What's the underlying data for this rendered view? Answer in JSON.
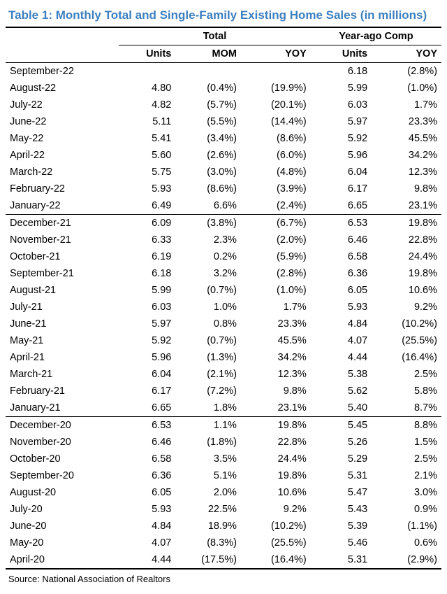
{
  "title": "Table 1: Monthly Total and Single-Family Existing Home Sales (in millions)",
  "title_color": "#3d7fbf",
  "group_headers": {
    "g1": "Total",
    "g2": "Year-ago Comp"
  },
  "col_headers": {
    "c1": "Units",
    "c2": "MOM",
    "c3": "YOY",
    "c4": "Units",
    "c5": "YOY"
  },
  "sections": [
    {
      "rows": [
        {
          "label": "September-22",
          "u1": "",
          "mom": "",
          "yoy1": "",
          "u2": "6.18",
          "yoy2": "(2.8%)"
        },
        {
          "label": "August-22",
          "u1": "4.80",
          "mom": "(0.4%)",
          "yoy1": "(19.9%)",
          "u2": "5.99",
          "yoy2": "(1.0%)"
        },
        {
          "label": "July-22",
          "u1": "4.82",
          "mom": "(5.7%)",
          "yoy1": "(20.1%)",
          "u2": "6.03",
          "yoy2": "1.7%"
        },
        {
          "label": "June-22",
          "u1": "5.11",
          "mom": "(5.5%)",
          "yoy1": "(14.4%)",
          "u2": "5.97",
          "yoy2": "23.3%"
        },
        {
          "label": "May-22",
          "u1": "5.41",
          "mom": "(3.4%)",
          "yoy1": "(8.6%)",
          "u2": "5.92",
          "yoy2": "45.5%"
        },
        {
          "label": "April-22",
          "u1": "5.60",
          "mom": "(2.6%)",
          "yoy1": "(6.0%)",
          "u2": "5.96",
          "yoy2": "34.2%"
        },
        {
          "label": "March-22",
          "u1": "5.75",
          "mom": "(3.0%)",
          "yoy1": "(4.8%)",
          "u2": "6.04",
          "yoy2": "12.3%"
        },
        {
          "label": "February-22",
          "u1": "5.93",
          "mom": "(8.6%)",
          "yoy1": "(3.9%)",
          "u2": "6.17",
          "yoy2": "9.8%"
        },
        {
          "label": "January-22",
          "u1": "6.49",
          "mom": "6.6%",
          "yoy1": "(2.4%)",
          "u2": "6.65",
          "yoy2": "23.1%"
        }
      ]
    },
    {
      "rows": [
        {
          "label": "December-21",
          "u1": "6.09",
          "mom": "(3.8%)",
          "yoy1": "(6.7%)",
          "u2": "6.53",
          "yoy2": "19.8%"
        },
        {
          "label": "November-21",
          "u1": "6.33",
          "mom": "2.3%",
          "yoy1": "(2.0%)",
          "u2": "6.46",
          "yoy2": "22.8%"
        },
        {
          "label": "October-21",
          "u1": "6.19",
          "mom": "0.2%",
          "yoy1": "(5.9%)",
          "u2": "6.58",
          "yoy2": "24.4%"
        },
        {
          "label": "September-21",
          "u1": "6.18",
          "mom": "3.2%",
          "yoy1": "(2.8%)",
          "u2": "6.36",
          "yoy2": "19.8%"
        },
        {
          "label": "August-21",
          "u1": "5.99",
          "mom": "(0.7%)",
          "yoy1": "(1.0%)",
          "u2": "6.05",
          "yoy2": "10.6%"
        },
        {
          "label": "July-21",
          "u1": "6.03",
          "mom": "1.0%",
          "yoy1": "1.7%",
          "u2": "5.93",
          "yoy2": "9.2%"
        },
        {
          "label": "June-21",
          "u1": "5.97",
          "mom": "0.8%",
          "yoy1": "23.3%",
          "u2": "4.84",
          "yoy2": "(10.2%)"
        },
        {
          "label": "May-21",
          "u1": "5.92",
          "mom": "(0.7%)",
          "yoy1": "45.5%",
          "u2": "4.07",
          "yoy2": "(25.5%)"
        },
        {
          "label": "April-21",
          "u1": "5.96",
          "mom": "(1.3%)",
          "yoy1": "34.2%",
          "u2": "4.44",
          "yoy2": "(16.4%)"
        },
        {
          "label": "March-21",
          "u1": "6.04",
          "mom": "(2.1%)",
          "yoy1": "12.3%",
          "u2": "5.38",
          "yoy2": "2.5%"
        },
        {
          "label": "February-21",
          "u1": "6.17",
          "mom": "(7.2%)",
          "yoy1": "9.8%",
          "u2": "5.62",
          "yoy2": "5.8%"
        },
        {
          "label": "January-21",
          "u1": "6.65",
          "mom": "1.8%",
          "yoy1": "23.1%",
          "u2": "5.40",
          "yoy2": "8.7%"
        }
      ]
    },
    {
      "rows": [
        {
          "label": "December-20",
          "u1": "6.53",
          "mom": "1.1%",
          "yoy1": "19.8%",
          "u2": "5.45",
          "yoy2": "8.8%"
        },
        {
          "label": "November-20",
          "u1": "6.46",
          "mom": "(1.8%)",
          "yoy1": "22.8%",
          "u2": "5.26",
          "yoy2": "1.5%"
        },
        {
          "label": "October-20",
          "u1": "6.58",
          "mom": "3.5%",
          "yoy1": "24.4%",
          "u2": "5.29",
          "yoy2": "2.5%"
        },
        {
          "label": "September-20",
          "u1": "6.36",
          "mom": "5.1%",
          "yoy1": "19.8%",
          "u2": "5.31",
          "yoy2": "2.1%"
        },
        {
          "label": "August-20",
          "u1": "6.05",
          "mom": "2.0%",
          "yoy1": "10.6%",
          "u2": "5.47",
          "yoy2": "3.0%"
        },
        {
          "label": "July-20",
          "u1": "5.93",
          "mom": "22.5%",
          "yoy1": "9.2%",
          "u2": "5.43",
          "yoy2": "0.9%"
        },
        {
          "label": "June-20",
          "u1": "4.84",
          "mom": "18.9%",
          "yoy1": "(10.2%)",
          "u2": "5.39",
          "yoy2": "(1.1%)"
        },
        {
          "label": "May-20",
          "u1": "4.07",
          "mom": "(8.3%)",
          "yoy1": "(25.5%)",
          "u2": "5.46",
          "yoy2": "0.6%"
        },
        {
          "label": "April-20",
          "u1": "4.44",
          "mom": "(17.5%)",
          "yoy1": "(16.4%)",
          "u2": "5.31",
          "yoy2": "(2.9%)"
        }
      ]
    }
  ],
  "source": "Source: National Association of Realtors"
}
